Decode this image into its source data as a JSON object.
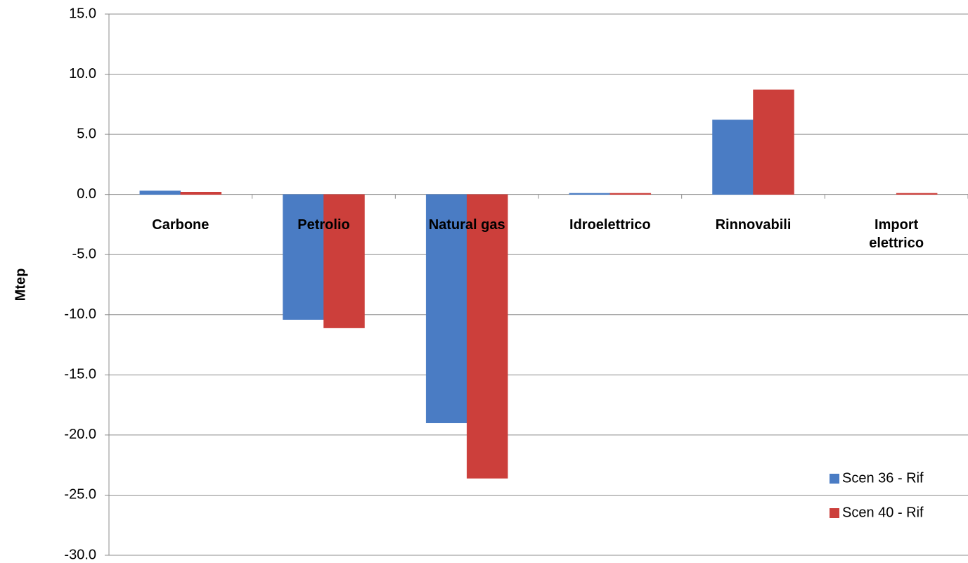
{
  "chart_data": {
    "type": "bar",
    "y_label": "Mtep",
    "categories": [
      "Carbone",
      "Petrolio",
      "Natural gas",
      "Idroelettrico",
      "Rinnovabili",
      "Import elettrico"
    ],
    "series": [
      {
        "name": "Scen 36 - Rif",
        "color": "#4a7cc4",
        "values": [
          0.3,
          -10.4,
          -19.0,
          0.1,
          6.2,
          0.0
        ]
      },
      {
        "name": "Scen 40 - Rif",
        "color": "#cc3f3b",
        "values": [
          0.2,
          -11.1,
          -23.6,
          0.1,
          8.7,
          0.1
        ]
      }
    ],
    "ylim": [
      -30,
      15
    ],
    "yticks": [
      {
        "value": -30,
        "label": "-30.0"
      },
      {
        "value": -25,
        "label": "-25.0"
      },
      {
        "value": -20,
        "label": "-20.0"
      },
      {
        "value": -15,
        "label": "-15.0"
      },
      {
        "value": -10,
        "label": "-10.0"
      },
      {
        "value": -5,
        "label": "-5.0"
      },
      {
        "value": 0,
        "label": "0.0"
      },
      {
        "value": 5,
        "label": "5.0"
      },
      {
        "value": 10,
        "label": "10.0"
      },
      {
        "value": 15,
        "label": "15.0"
      }
    ],
    "grid": true,
    "legend": "lower right"
  }
}
